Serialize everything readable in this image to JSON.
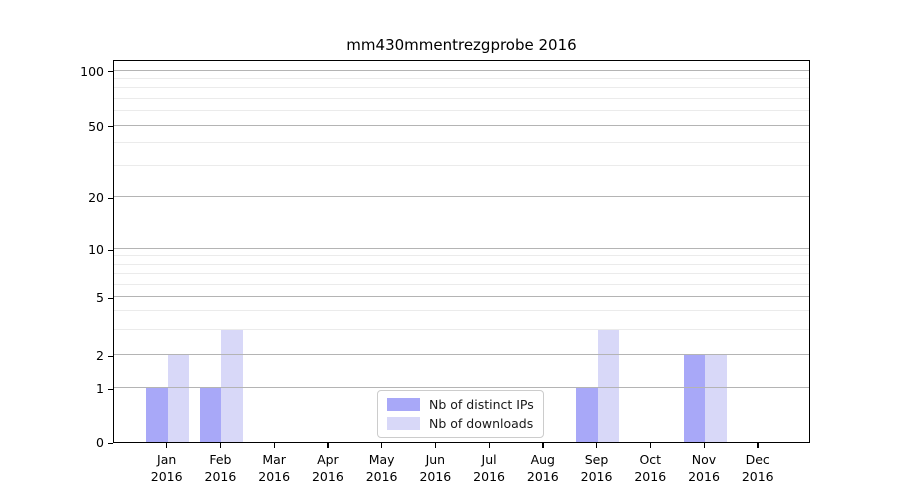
{
  "chart_data": {
    "type": "bar",
    "title": "mm430mmentrezgprobe 2016",
    "xlabel": "",
    "ylabel": "",
    "categories": [
      "Jan",
      "Feb",
      "Mar",
      "Apr",
      "May",
      "Jun",
      "Jul",
      "Aug",
      "Sep",
      "Oct",
      "Nov",
      "Dec"
    ],
    "category_year": "2016",
    "series": [
      {
        "name": "Nb of distinct IPs",
        "color": "#a8a8f8",
        "values": [
          1,
          1,
          0,
          0,
          0,
          0,
          0,
          0,
          1,
          0,
          2,
          0
        ]
      },
      {
        "name": "Nb of downloads",
        "color": "#d8d8f8",
        "values": [
          2,
          3,
          0,
          0,
          0,
          0,
          0,
          0,
          3,
          0,
          2,
          0
        ]
      }
    ],
    "yscale": "log-like (0 baseline, log spacing above 1)",
    "y_major_ticks": [
      0,
      1,
      2,
      5,
      10,
      20,
      50,
      100
    ],
    "y_minor_gridlines": [
      3,
      4,
      6,
      7,
      8,
      9,
      30,
      40,
      60,
      70,
      80,
      90
    ],
    "ylim": [
      0,
      100
    ],
    "grid": true,
    "legend_position": "lower center (inside plot)"
  },
  "colors": {
    "bar_distinct_ips": "#a8a8f8",
    "bar_downloads": "#d8d8f8",
    "grid_major": "#b4b4b4",
    "grid_minor": "#ebebeb",
    "axis_spine": "#000000",
    "text": "#000000",
    "legend_border": "#cccccc",
    "background": "#ffffff"
  }
}
